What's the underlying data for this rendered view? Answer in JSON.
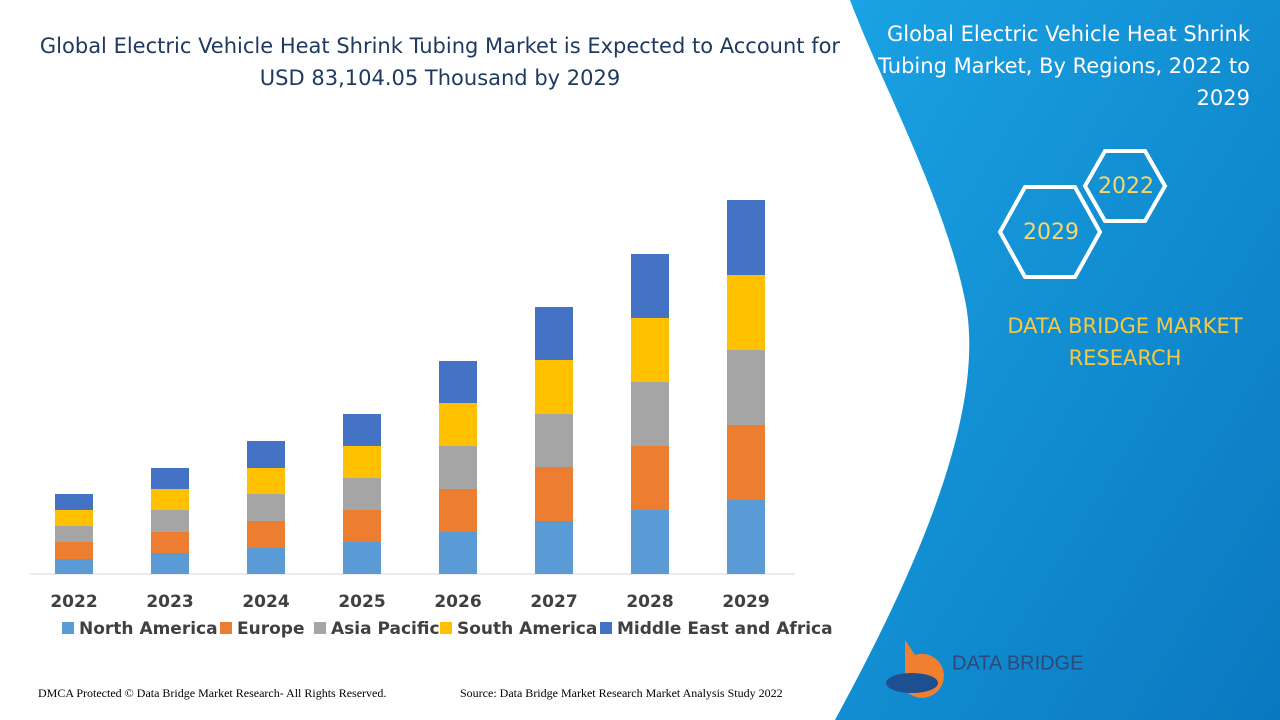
{
  "chart_data": {
    "type": "stacked_bar",
    "title": "Global Electric Vehicle Heat Shrink Tubing Market is Expected to Account for USD 83,104.05 Thousand by 2029",
    "categories": [
      "2022",
      "2023",
      "2024",
      "2025",
      "2026",
      "2027",
      "2028",
      "2029"
    ],
    "series": [
      {
        "name": "North America",
        "color": "#5b9bd5",
        "values": [
          15,
          21,
          26,
          32,
          42,
          53,
          64,
          74
        ]
      },
      {
        "name": "Europe",
        "color": "#ed7d31",
        "values": [
          17,
          21,
          27,
          32,
          43,
          54,
          64,
          75
        ]
      },
      {
        "name": "Asia Pacific",
        "color": "#a5a5a5",
        "values": [
          16,
          22,
          27,
          32,
          43,
          53,
          64,
          75
        ]
      },
      {
        "name": "South America",
        "color": "#ffc000",
        "values": [
          16,
          21,
          26,
          32,
          43,
          54,
          64,
          75
        ]
      },
      {
        "name": "Middle East and Africa",
        "color": "#4472c4",
        "values": [
          16,
          21,
          27,
          32,
          42,
          53,
          64,
          75
        ]
      }
    ]
  },
  "panel": {
    "title": "Global Electric Vehicle Heat Shrink Tubing Market, By Regions, 2022 to 2029",
    "hex_top": "2022",
    "hex_bottom": "2029",
    "brand": "DATA BRIDGE MARKET RESEARCH",
    "logo": "DATA BRIDGE"
  },
  "footer": {
    "left": "DMCA Protected © Data Bridge Market Research- All Rights Reserved.",
    "right": "Source: Data Bridge Market Research Market Analysis Study 2022"
  }
}
